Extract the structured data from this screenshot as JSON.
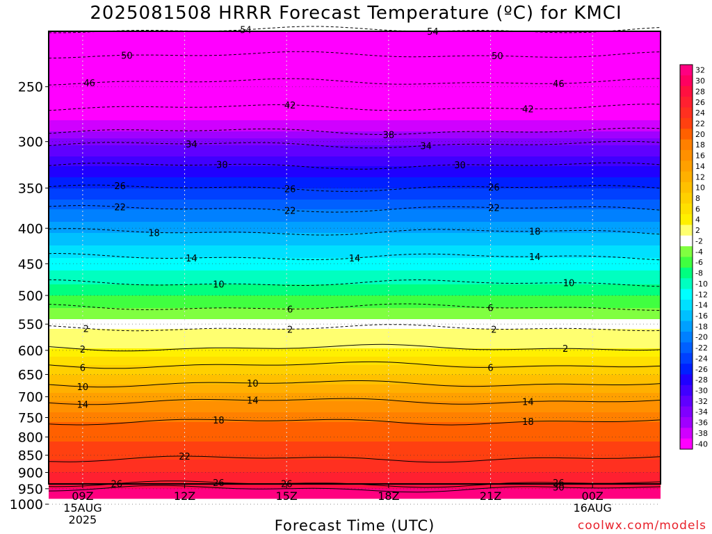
{
  "chart_data": {
    "type": "heatmap",
    "title": "2025081508 HRRR Forecast Temperature (ºC) for KMCI",
    "xlabel": "Forecast Time (UTC)",
    "ylabel": "",
    "credit": "coolwx.com/models",
    "y_scale": "log-pressure",
    "ylim": [
      1000,
      200
    ],
    "y_ticks": [
      "250",
      "300",
      "350",
      "400",
      "450",
      "500",
      "550",
      "600",
      "650",
      "700",
      "750",
      "800",
      "850",
      "900",
      "950",
      "1000"
    ],
    "x_ticks": [
      {
        "label": "09Z",
        "date": "15AUG",
        "year": "2025",
        "hour": 9
      },
      {
        "label": "12Z",
        "hour": 12
      },
      {
        "label": "15Z",
        "hour": 15
      },
      {
        "label": "18Z",
        "hour": 18
      },
      {
        "label": "21Z",
        "hour": 21
      },
      {
        "label": "00Z",
        "date": "16AUG",
        "hour": 24
      }
    ],
    "xlim_hours": [
      8,
      26
    ],
    "surface_pressure": 980,
    "colorbar": {
      "labels": [
        "32",
        "30",
        "28",
        "26",
        "24",
        "22",
        "20",
        "18",
        "16",
        "14",
        "12",
        "10",
        "8",
        "6",
        "4",
        "2",
        "-2",
        "-4",
        "-6",
        "-8",
        "-10",
        "-12",
        "-14",
        "-16",
        "-18",
        "-20",
        "-22",
        "-24",
        "-26",
        "-28",
        "-30",
        "-32",
        "-34",
        "-36",
        "-38",
        "-40"
      ],
      "colors": [
        "#ff0080",
        "#ff0060",
        "#ff1040",
        "#ff2030",
        "#ff3020",
        "#ff4010",
        "#ff6000",
        "#ff8000",
        "#ff9000",
        "#ffa000",
        "#ffb000",
        "#ffc000",
        "#ffd000",
        "#ffe000",
        "#fff000",
        "#ffff70",
        "#ffffff",
        "#80ff40",
        "#40ff40",
        "#00ff80",
        "#00ffc0",
        "#00ffff",
        "#00e0ff",
        "#00c0ff",
        "#00a0ff",
        "#0080ff",
        "#0060ff",
        "#0040ff",
        "#0020ff",
        "#2000ff",
        "#4000ff",
        "#6000ff",
        "#8000ff",
        "#a000ff",
        "#d000ff",
        "#ff00ff"
      ]
    },
    "ground_color": "#a0522d",
    "contours": [
      {
        "value": -54,
        "pressure": 207,
        "style": "dashed"
      },
      {
        "value": -50,
        "pressure": 225,
        "style": "dashed"
      },
      {
        "value": -46,
        "pressure": 246,
        "style": "dashed"
      },
      {
        "value": -42,
        "pressure": 268,
        "style": "dashed"
      },
      {
        "value": -38,
        "pressure": 290,
        "style": "dashed"
      },
      {
        "value": -34,
        "pressure": 303,
        "style": "dashed"
      },
      {
        "value": -30,
        "pressure": 325,
        "style": "dashed"
      },
      {
        "value": -26,
        "pressure": 350,
        "style": "dashed"
      },
      {
        "value": -22,
        "pressure": 375,
        "style": "dashed"
      },
      {
        "value": -18,
        "pressure": 405,
        "style": "dashed"
      },
      {
        "value": -14,
        "pressure": 440,
        "style": "dashed"
      },
      {
        "value": -10,
        "pressure": 480,
        "style": "dashed"
      },
      {
        "value": -6,
        "pressure": 520,
        "style": "dashed"
      },
      {
        "value": -2,
        "pressure": 557,
        "style": "dashed"
      },
      {
        "value": 2,
        "pressure": 595,
        "style": "solid"
      },
      {
        "value": 6,
        "pressure": 630,
        "style": "solid"
      },
      {
        "value": 10,
        "pressure": 670,
        "style": "solid"
      },
      {
        "value": 14,
        "pressure": 710,
        "style": "solid"
      },
      {
        "value": 18,
        "pressure": 760,
        "style": "solid"
      },
      {
        "value": 22,
        "pressure": 860,
        "style": "solid"
      },
      {
        "value": 26,
        "pressure": 935,
        "style": "solid"
      },
      {
        "value": 30,
        "pressure": 950,
        "style": "solid"
      }
    ],
    "contour_labels": [
      {
        "text": "54",
        "hour": 13.8,
        "contour": -54
      },
      {
        "text": "54",
        "hour": 19.3,
        "contour": -54
      },
      {
        "text": "50",
        "hour": 10.3,
        "contour": -50
      },
      {
        "text": "50",
        "hour": 21.2,
        "contour": -50
      },
      {
        "text": "46",
        "hour": 9.2,
        "contour": -46
      },
      {
        "text": "46",
        "hour": 23.0,
        "contour": -46
      },
      {
        "text": "42",
        "hour": 15.1,
        "contour": -42
      },
      {
        "text": "42",
        "hour": 22.1,
        "contour": -42
      },
      {
        "text": "38",
        "hour": 18.0,
        "contour": -38
      },
      {
        "text": "34",
        "hour": 12.2,
        "contour": -34
      },
      {
        "text": "34",
        "hour": 19.1,
        "contour": -34
      },
      {
        "text": "30",
        "hour": 13.1,
        "contour": -30
      },
      {
        "text": "30",
        "hour": 20.1,
        "contour": -30
      },
      {
        "text": "26",
        "hour": 10.1,
        "contour": -26
      },
      {
        "text": "26",
        "hour": 15.1,
        "contour": -26
      },
      {
        "text": "26",
        "hour": 21.1,
        "contour": -26
      },
      {
        "text": "22",
        "hour": 10.1,
        "contour": -22
      },
      {
        "text": "22",
        "hour": 15.1,
        "contour": -22
      },
      {
        "text": "22",
        "hour": 21.1,
        "contour": -22
      },
      {
        "text": "18",
        "hour": 11.1,
        "contour": -18
      },
      {
        "text": "18",
        "hour": 22.3,
        "contour": -18
      },
      {
        "text": "14",
        "hour": 12.2,
        "contour": -14
      },
      {
        "text": "14",
        "hour": 17.0,
        "contour": -14
      },
      {
        "text": "14",
        "hour": 22.3,
        "contour": -14
      },
      {
        "text": "10",
        "hour": 13.0,
        "contour": -10
      },
      {
        "text": "10",
        "hour": 23.3,
        "contour": -10
      },
      {
        "text": "6",
        "hour": 15.1,
        "contour": -6
      },
      {
        "text": "6",
        "hour": 21.0,
        "contour": -6
      },
      {
        "text": "2",
        "hour": 9.1,
        "contour": -2
      },
      {
        "text": "2",
        "hour": 15.1,
        "contour": -2
      },
      {
        "text": "2",
        "hour": 21.1,
        "contour": -2
      },
      {
        "text": "2",
        "hour": 9.0,
        "contour": 2
      },
      {
        "text": "2",
        "hour": 23.2,
        "contour": 2
      },
      {
        "text": "6",
        "hour": 9.0,
        "contour": 6
      },
      {
        "text": "6",
        "hour": 21.0,
        "contour": 6
      },
      {
        "text": "10",
        "hour": 9.0,
        "contour": 10
      },
      {
        "text": "10",
        "hour": 14.0,
        "contour": 10
      },
      {
        "text": "14",
        "hour": 9.0,
        "contour": 14
      },
      {
        "text": "14",
        "hour": 14.0,
        "contour": 14
      },
      {
        "text": "14",
        "hour": 22.1,
        "contour": 14
      },
      {
        "text": "18",
        "hour": 13.0,
        "contour": 18
      },
      {
        "text": "18",
        "hour": 22.1,
        "contour": 18
      },
      {
        "text": "22",
        "hour": 12.0,
        "contour": 22
      },
      {
        "text": "26",
        "hour": 10.0,
        "contour": 26
      },
      {
        "text": "26",
        "hour": 13.0,
        "contour": 26
      },
      {
        "text": "26",
        "hour": 15.0,
        "contour": 26
      },
      {
        "text": "26",
        "hour": 23.0,
        "contour": 26
      },
      {
        "text": "30",
        "hour": 23.0,
        "contour": 30
      }
    ]
  }
}
